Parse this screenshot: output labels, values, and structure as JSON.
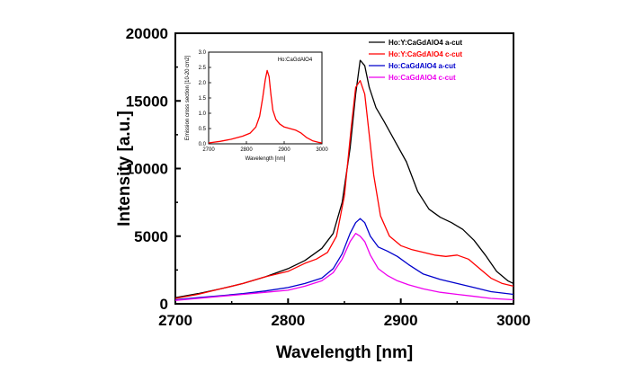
{
  "chart_data": [
    {
      "type": "line",
      "title": "",
      "xlabel": "Wavelength [nm]",
      "ylabel": "Intensity [a.u.]",
      "xlim": [
        2700,
        3000
      ],
      "ylim": [
        0,
        20000
      ],
      "xticks": [
        "2700",
        "2800",
        "2900",
        "3000"
      ],
      "yticks": [
        "0",
        "5000",
        "10000",
        "15000",
        "20000"
      ],
      "legend_position": "top-right",
      "grid": false,
      "series": [
        {
          "name": "Ho:Y:CaGdAlO4 a-cut",
          "color": "#000000",
          "x": [
            2700,
            2720,
            2740,
            2760,
            2780,
            2800,
            2815,
            2830,
            2840,
            2848,
            2855,
            2860,
            2864,
            2868,
            2872,
            2878,
            2885,
            2895,
            2905,
            2915,
            2925,
            2935,
            2945,
            2955,
            2965,
            2975,
            2985,
            2995,
            3000
          ],
          "values": [
            450,
            750,
            1100,
            1500,
            2000,
            2600,
            3200,
            4100,
            5200,
            7500,
            11500,
            15500,
            18000,
            17600,
            16000,
            14500,
            13500,
            12000,
            10500,
            8300,
            7000,
            6400,
            6000,
            5500,
            4700,
            3600,
            2400,
            1700,
            1500
          ]
        },
        {
          "name": "Ho:Y:CaGdAlO4 c-cut",
          "color": "#ff0000",
          "x": [
            2700,
            2720,
            2740,
            2760,
            2780,
            2800,
            2815,
            2825,
            2835,
            2843,
            2850,
            2856,
            2860,
            2864,
            2868,
            2872,
            2876,
            2882,
            2890,
            2900,
            2910,
            2920,
            2930,
            2940,
            2950,
            2960,
            2970,
            2980,
            2990,
            3000
          ],
          "values": [
            400,
            700,
            1100,
            1500,
            2000,
            2400,
            3000,
            3300,
            3800,
            5000,
            8000,
            13000,
            16000,
            16500,
            15500,
            12500,
            9500,
            6500,
            5000,
            4300,
            4000,
            3800,
            3600,
            3500,
            3600,
            3300,
            2600,
            1900,
            1500,
            1300
          ]
        },
        {
          "name": "Ho:CaGdAlO4 a-cut",
          "color": "#0000cc",
          "x": [
            2700,
            2720,
            2740,
            2760,
            2780,
            2800,
            2815,
            2830,
            2840,
            2848,
            2855,
            2860,
            2864,
            2868,
            2873,
            2880,
            2888,
            2897,
            2907,
            2920,
            2935,
            2950,
            2965,
            2980,
            3000
          ],
          "values": [
            300,
            450,
            600,
            750,
            950,
            1200,
            1500,
            1900,
            2600,
            3700,
            5200,
            6000,
            6300,
            6000,
            5000,
            4200,
            3900,
            3500,
            2900,
            2200,
            1800,
            1500,
            1200,
            900,
            700
          ]
        },
        {
          "name": "Ho:CaGdAlO4 c-cut",
          "color": "#ee00ee",
          "x": [
            2700,
            2720,
            2740,
            2760,
            2780,
            2800,
            2815,
            2830,
            2840,
            2848,
            2855,
            2860,
            2864,
            2868,
            2873,
            2880,
            2888,
            2897,
            2907,
            2920,
            2935,
            2950,
            2965,
            2980,
            3000
          ],
          "values": [
            250,
            400,
            550,
            700,
            850,
            1000,
            1300,
            1700,
            2300,
            3300,
            4600,
            5200,
            5000,
            4600,
            3600,
            2600,
            2100,
            1700,
            1400,
            1100,
            850,
            700,
            550,
            400,
            300
          ]
        }
      ]
    },
    {
      "type": "line",
      "title": "",
      "series_label": "Ho:CaGdAlO4",
      "xlabel": "Wavelength [nm]",
      "ylabel": "Emission cross section [10-20 cm2]",
      "xlim": [
        2700,
        3000
      ],
      "ylim": [
        0,
        3.0
      ],
      "xticks": [
        "2700",
        "2800",
        "2900",
        "3000"
      ],
      "yticks": [
        "0.0",
        "0.5",
        "1.0",
        "1.5",
        "2.0",
        "2.5",
        "3.0"
      ],
      "series": [
        {
          "name": "Ho:CaGdAlO4",
          "color": "#ff0000",
          "x": [
            2700,
            2730,
            2760,
            2790,
            2810,
            2825,
            2835,
            2843,
            2850,
            2855,
            2860,
            2865,
            2870,
            2878,
            2888,
            2900,
            2915,
            2930,
            2945,
            2960,
            2975,
            2990,
            3000
          ],
          "values": [
            0.03,
            0.08,
            0.15,
            0.25,
            0.35,
            0.55,
            0.9,
            1.5,
            2.1,
            2.4,
            2.2,
            1.6,
            1.1,
            0.8,
            0.65,
            0.55,
            0.5,
            0.45,
            0.35,
            0.2,
            0.1,
            0.05,
            0.03
          ]
        }
      ]
    }
  ],
  "legend": {
    "items": [
      {
        "label": "Ho:Y:CaGdAlO4 a-cut",
        "color": "#000000"
      },
      {
        "label": "Ho:Y:CaGdAlO4 c-cut",
        "color": "#ff0000"
      },
      {
        "label": "Ho:CaGdAlO4 a-cut",
        "color": "#0000cc"
      },
      {
        "label": "Ho:CaGdAlO4 c-cut",
        "color": "#ee00ee"
      }
    ]
  }
}
